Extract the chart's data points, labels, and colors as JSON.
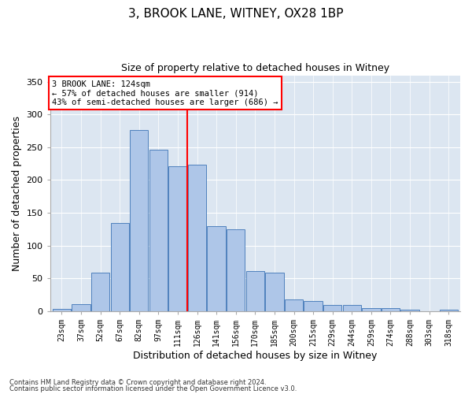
{
  "title1": "3, BROOK LANE, WITNEY, OX28 1BP",
  "title2": "Size of property relative to detached houses in Witney",
  "xlabel": "Distribution of detached houses by size in Witney",
  "ylabel": "Number of detached properties",
  "bar_labels": [
    "23sqm",
    "37sqm",
    "52sqm",
    "67sqm",
    "82sqm",
    "97sqm",
    "111sqm",
    "126sqm",
    "141sqm",
    "156sqm",
    "170sqm",
    "185sqm",
    "200sqm",
    "215sqm",
    "229sqm",
    "244sqm",
    "259sqm",
    "274sqm",
    "288sqm",
    "303sqm",
    "318sqm"
  ],
  "bar_heights": [
    3,
    10,
    59,
    135,
    277,
    246,
    221,
    224,
    130,
    125,
    61,
    59,
    18,
    15,
    9,
    9,
    5,
    5,
    2,
    0,
    2
  ],
  "bar_color": "#aec6e8",
  "bar_edge_color": "#4f81bd",
  "vline_x": 6.5,
  "vline_color": "red",
  "annotation_text": "3 BROOK LANE: 124sqm\n← 57% of detached houses are smaller (914)\n43% of semi-detached houses are larger (686) →",
  "annotation_box_color": "white",
  "annotation_box_edge": "red",
  "bg_color": "#dce6f1",
  "footer1": "Contains HM Land Registry data © Crown copyright and database right 2024.",
  "footer2": "Contains public sector information licensed under the Open Government Licence v3.0.",
  "ylim": [
    0,
    360
  ],
  "yticks": [
    0,
    50,
    100,
    150,
    200,
    250,
    300,
    350
  ]
}
